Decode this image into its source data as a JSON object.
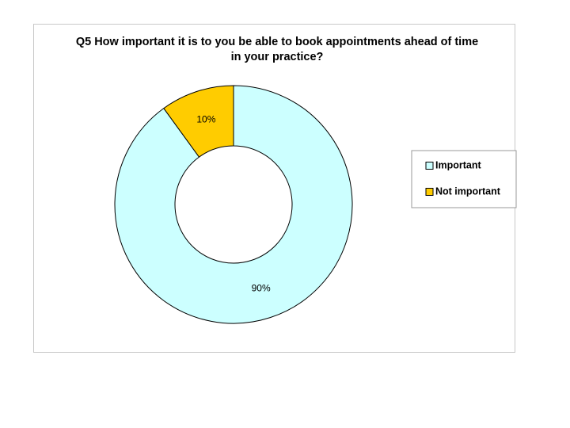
{
  "chart_data": {
    "type": "donut",
    "title": "Q5 How important it is to you be able to book appointments ahead of time in your practice?",
    "categories": [
      "Important",
      "Not important"
    ],
    "values": [
      90,
      10
    ],
    "value_labels": [
      "90%",
      "10%"
    ],
    "colors": [
      "#ccffff",
      "#ffcc00"
    ],
    "legend": "right"
  }
}
